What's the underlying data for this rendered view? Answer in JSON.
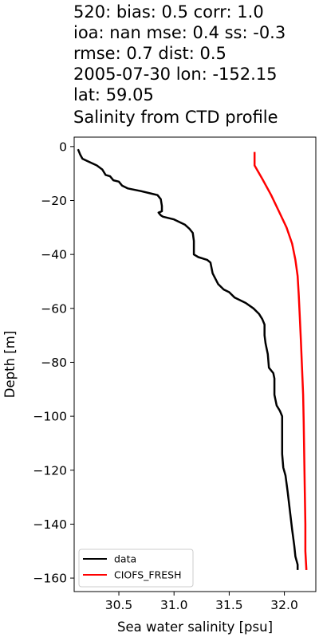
{
  "chart_data": {
    "type": "line",
    "title_lines": [
      "520: bias: 0.5  corr: 1.0",
      "ioa: nan  mse: 0.4  ss: -0.3",
      "rmse: 0.7  dist: 0.5",
      "2005-07-30 lon: -152.15",
      "lat: 59.05",
      "Salinity from CTD profile"
    ],
    "xlabel": "Sea water salinity [psu]",
    "ylabel": "Depth [m]",
    "xlim": [
      30.095,
      32.285
    ],
    "ylim": [
      -165,
      3.5
    ],
    "xticks": [
      30.5,
      31.0,
      31.5,
      32.0
    ],
    "xtick_labels": [
      "30.5",
      "31.0",
      "31.5",
      "32.0"
    ],
    "yticks": [
      0,
      -20,
      -40,
      -60,
      -80,
      -100,
      -120,
      -140,
      -160
    ],
    "ytick_labels": [
      "0",
      "−20",
      "−40",
      "−60",
      "−80",
      "−100",
      "−120",
      "−140",
      "−160"
    ],
    "grid": false,
    "legend_position": "lower-left",
    "series": [
      {
        "name": "data",
        "color": "#000000",
        "points": [
          [
            30.13,
            -1
          ],
          [
            30.15,
            -3
          ],
          [
            30.17,
            -4.5
          ],
          [
            30.22,
            -5.5
          ],
          [
            30.3,
            -7
          ],
          [
            30.35,
            -8.5
          ],
          [
            30.38,
            -10.5
          ],
          [
            30.42,
            -11
          ],
          [
            30.45,
            -12.5
          ],
          [
            30.5,
            -13
          ],
          [
            30.53,
            -14.5
          ],
          [
            30.58,
            -15.5
          ],
          [
            30.7,
            -16.5
          ],
          [
            30.8,
            -17.5
          ],
          [
            30.85,
            -18
          ],
          [
            30.88,
            -19.5
          ],
          [
            30.89,
            -22
          ],
          [
            30.89,
            -24
          ],
          [
            30.86,
            -24.5
          ],
          [
            30.88,
            -25.5
          ],
          [
            30.9,
            -26
          ],
          [
            31.0,
            -27
          ],
          [
            31.1,
            -29
          ],
          [
            31.14,
            -30.5
          ],
          [
            31.17,
            -32
          ],
          [
            31.18,
            -35
          ],
          [
            31.18,
            -40
          ],
          [
            31.22,
            -41
          ],
          [
            31.3,
            -42
          ],
          [
            31.33,
            -43
          ],
          [
            31.35,
            -47
          ],
          [
            31.4,
            -51
          ],
          [
            31.45,
            -53
          ],
          [
            31.5,
            -54
          ],
          [
            31.55,
            -56
          ],
          [
            31.65,
            -58
          ],
          [
            31.72,
            -60
          ],
          [
            31.77,
            -62
          ],
          [
            31.8,
            -64
          ],
          [
            31.82,
            -66
          ],
          [
            31.82,
            -70
          ],
          [
            31.83,
            -73
          ],
          [
            31.85,
            -77
          ],
          [
            31.86,
            -82
          ],
          [
            31.9,
            -84
          ],
          [
            31.91,
            -86
          ],
          [
            31.91,
            -92
          ],
          [
            31.93,
            -96
          ],
          [
            31.96,
            -98
          ],
          [
            31.98,
            -100
          ],
          [
            31.98,
            -108
          ],
          [
            31.98,
            -114
          ],
          [
            31.99,
            -119
          ],
          [
            32.01,
            -122
          ],
          [
            32.03,
            -128
          ],
          [
            32.05,
            -135
          ],
          [
            32.07,
            -142
          ],
          [
            32.09,
            -148
          ],
          [
            32.1,
            -152
          ],
          [
            32.12,
            -155
          ],
          [
            32.12,
            -157
          ]
        ]
      },
      {
        "name": "CIOFS_FRESH",
        "color": "#ff0000",
        "points": [
          [
            31.73,
            -2
          ],
          [
            31.73,
            -7
          ],
          [
            31.8,
            -12
          ],
          [
            31.88,
            -18
          ],
          [
            31.95,
            -24
          ],
          [
            32.02,
            -30
          ],
          [
            32.07,
            -36
          ],
          [
            32.1,
            -42
          ],
          [
            32.12,
            -48
          ],
          [
            32.13,
            -55
          ],
          [
            32.14,
            -63
          ],
          [
            32.15,
            -72
          ],
          [
            32.16,
            -82
          ],
          [
            32.17,
            -92
          ],
          [
            32.175,
            -102
          ],
          [
            32.18,
            -115
          ],
          [
            32.185,
            -128
          ],
          [
            32.19,
            -140
          ],
          [
            32.19,
            -150
          ],
          [
            32.2,
            -157
          ]
        ]
      }
    ]
  }
}
